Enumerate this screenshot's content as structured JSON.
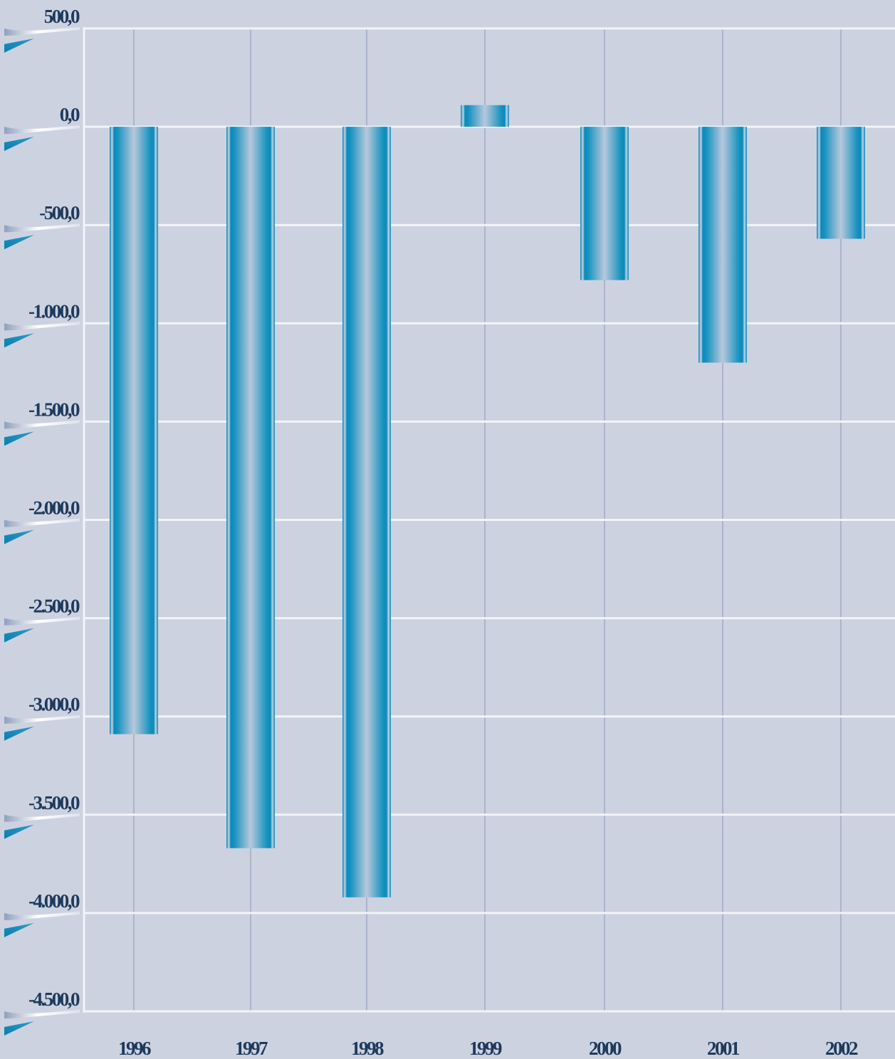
{
  "chart_data": {
    "type": "bar",
    "categories": [
      "1996",
      "1997",
      "1998",
      "1999",
      "2000",
      "2001",
      "2002"
    ],
    "values": [
      -3090,
      -3670,
      -3920,
      110,
      -780,
      -1200,
      -570
    ],
    "ylim": [
      -4500,
      500
    ],
    "yticks": [
      500,
      0,
      -500,
      -1000,
      -1500,
      -2000,
      -2500,
      -3000,
      -3500,
      -4000,
      -4500
    ],
    "ytick_labels": [
      "500,0",
      "0,0",
      "-500,0",
      "-1.000,0",
      "-1.500,0",
      "-2.000,0",
      "-2.500,0",
      "-3.000,0",
      "-3.500,0",
      "-4.000,0",
      "-4.500,0"
    ],
    "title": "",
    "xlabel": "",
    "ylabel": "",
    "grid": true,
    "colors": {
      "background": "#cdd2e0",
      "grid_horizontal": "#f2f4f9",
      "grid_vertical": "#aab5cb",
      "bar_dark": "#0888b8",
      "bar_light": "#b5c6da",
      "label": "#1e3a5c"
    }
  }
}
